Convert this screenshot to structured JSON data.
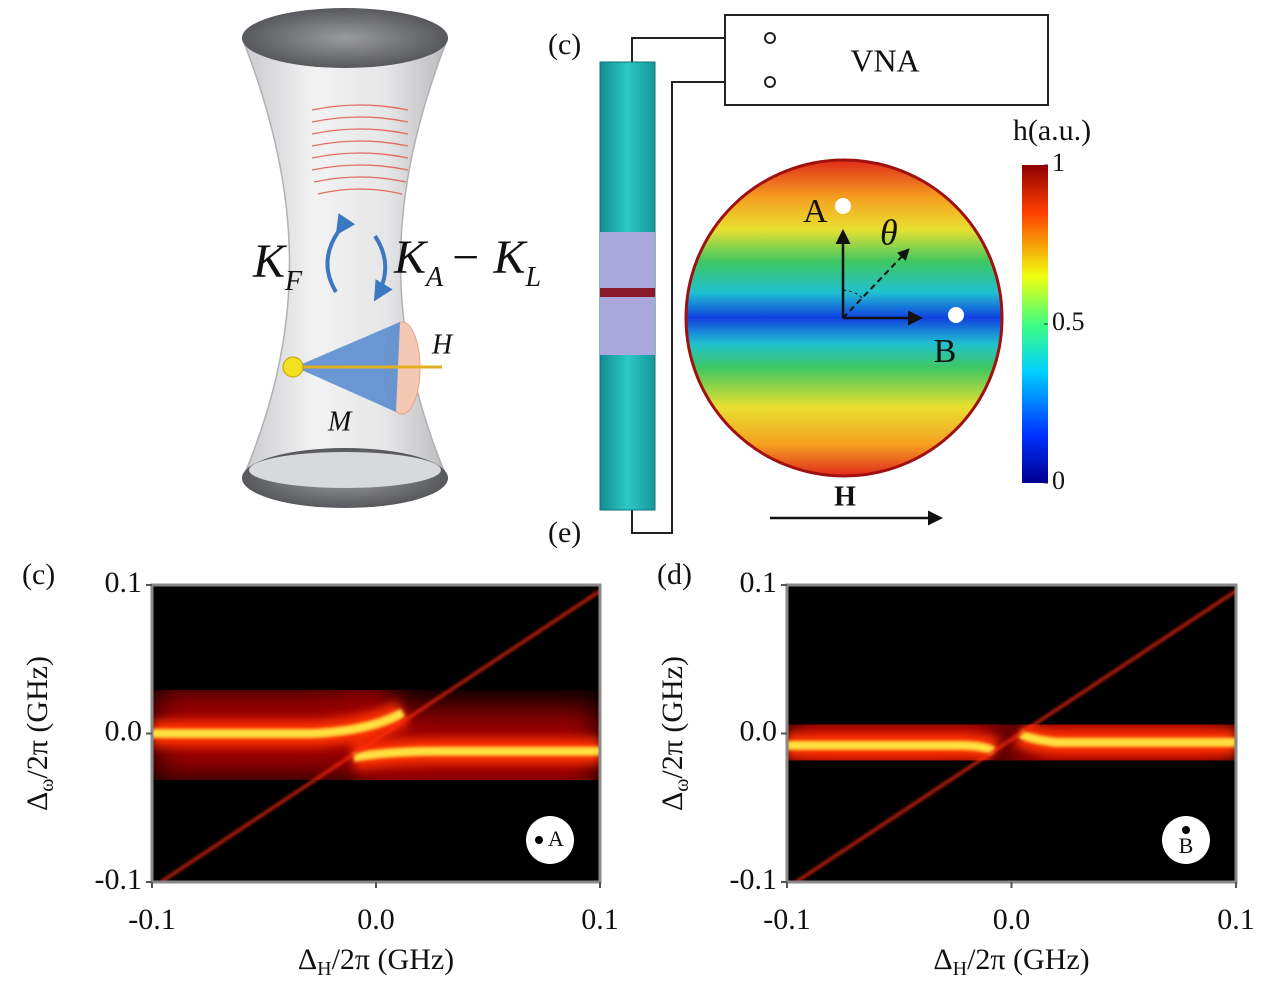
{
  "cavity": {
    "coupling_left": "K",
    "coupling_left_sub": "F",
    "coupling_right": "K",
    "coupling_right_sub": "A",
    "coupling_minus": "− K",
    "coupling_minus_sub": "L",
    "field": "H",
    "magnetization": "M"
  },
  "setup": {
    "panel_top": "(c)",
    "panel_bottom": "(e)",
    "instrument": "VNA",
    "point_a": "A",
    "point_b": "B",
    "angle": "θ",
    "field": "H"
  },
  "colorbar": {
    "label": "h(a.u.)",
    "lim": [
      0,
      1
    ],
    "ticks": [
      0,
      0.5,
      1
    ]
  },
  "chart_data": [
    {
      "type": "heatmap",
      "panel": "(c)",
      "marker": "A",
      "x_label": {
        "symbol": "Δ",
        "sub": "H",
        "rest": "/2π (GHz)"
      },
      "y_label": {
        "symbol": "Δ",
        "sub": "ω",
        "rest": "/2π (GHz)"
      },
      "xlim": [
        -0.1,
        0.1
      ],
      "xticks": [
        -0.1,
        {
          "value": 0,
          "label": "0.0"
        },
        0.1
      ],
      "ylim": [
        -0.1,
        0.1
      ],
      "yticks": [
        -0.1,
        {
          "value": 0,
          "label": "0.0"
        },
        0.1
      ]
    },
    {
      "type": "heatmap",
      "panel": "(d)",
      "marker": "B",
      "x_label": {
        "symbol": "Δ",
        "sub": "H",
        "rest": "/2π (GHz)"
      },
      "y_label": {
        "symbol": "Δ",
        "sub": "ω",
        "rest": "/2π (GHz)"
      },
      "xlim": [
        -0.1,
        0.1
      ],
      "xticks": [
        -0.1,
        {
          "value": 0,
          "label": "0.0"
        },
        0.1
      ],
      "ylim": [
        -0.1,
        0.1
      ],
      "yticks": [
        -0.1,
        {
          "value": 0,
          "label": "0.0"
        },
        0.1
      ]
    }
  ]
}
